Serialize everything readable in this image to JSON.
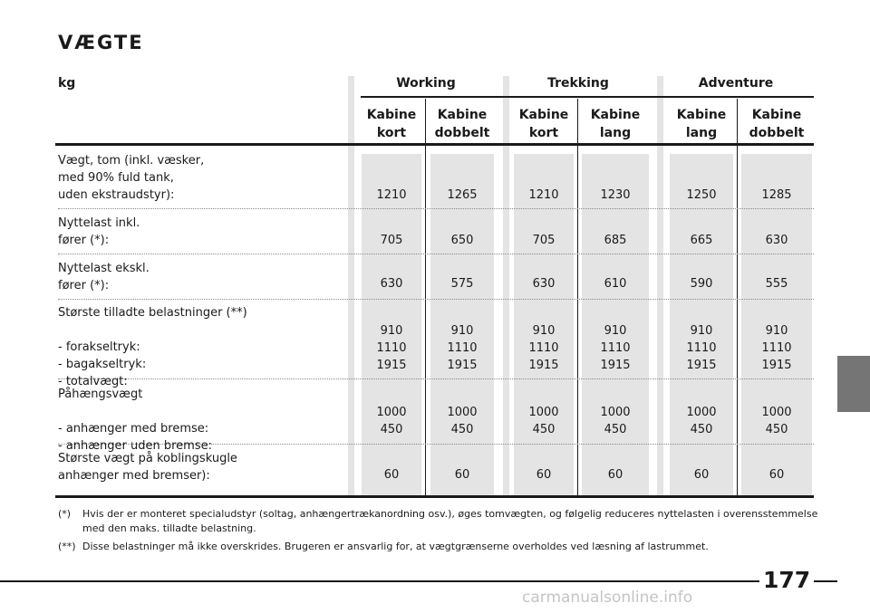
{
  "title": "VÆGTE",
  "unit_label": "kg",
  "groups": [
    "Working",
    "Trekking",
    "Adventure"
  ],
  "columns": [
    {
      "l1": "Kabine",
      "l2": "kort"
    },
    {
      "l1": "Kabine",
      "l2": "dobbelt"
    },
    {
      "l1": "Kabine",
      "l2": "kort"
    },
    {
      "l1": "Kabine",
      "l2": "lang"
    },
    {
      "l1": "Kabine",
      "l2": "lang"
    },
    {
      "l1": "Kabine",
      "l2": "dobbelt"
    }
  ],
  "rows": [
    {
      "label": "Vægt, tom (inkl. væsker,\nmed 90% fuld tank,\nuden ekstraudstyr):",
      "values": [
        "1210",
        "1265",
        "1210",
        "1230",
        "1250",
        "1285"
      ]
    },
    {
      "label": "Nyttelast inkl.\nfører (*):",
      "values": [
        "705",
        "650",
        "705",
        "685",
        "665",
        "630"
      ]
    },
    {
      "label": "Nyttelast ekskl.\nfører (*):",
      "values": [
        "630",
        "575",
        "630",
        "610",
        "590",
        "555"
      ]
    },
    {
      "label": "Største tilladte belastninger (**)\n\n- forakseltryk:\n- bagakseltryk:\n- totalvægt:",
      "values": [
        "910\n1110\n1915",
        "910\n1110\n1915",
        "910\n1110\n1915",
        "910\n1110\n1915",
        "910\n1110\n1915",
        "910\n1110\n1915"
      ]
    },
    {
      "label": "Påhængsvægt\n\n- anhænger med bremse:\n- anhænger uden bremse:",
      "values": [
        "1000\n450",
        "1000\n450",
        "1000\n450",
        "1000\n450",
        "1000\n450",
        "1000\n450"
      ]
    },
    {
      "label": "Største vægt på koblingskugle\nanhænger med bremser):",
      "values": [
        "60",
        "60",
        "60",
        "60",
        "60",
        "60"
      ]
    }
  ],
  "footnotes": [
    {
      "mark": "(*)",
      "text": "Hvis der er monteret specialudstyr (soltag, anhængertrækanordning osv.), øges tomvægten, og følgelig reduceres nyttelasten i overensstemmelse med den maks. tilladte belastning."
    },
    {
      "mark": "(**)",
      "text": "Disse belastninger må ikke overskrides. Brugeren er ansvarlig for, at vægtgrænserne overholdes ved læsning af lastrummet."
    }
  ],
  "page_number": "177",
  "watermark": "carmanualsonline.info"
}
